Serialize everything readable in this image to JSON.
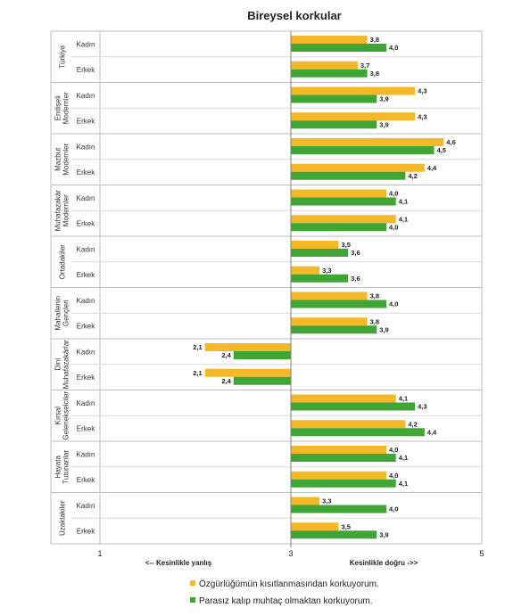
{
  "chart_data": {
    "type": "bar",
    "orientation": "horizontal",
    "title": "Bireysel korkular",
    "groups": [
      {
        "name": "Türkiye",
        "rows": [
          {
            "label": "Kadın",
            "values": [
              3.8,
              4.0
            ]
          },
          {
            "label": "Erkek",
            "values": [
              3.7,
              3.8
            ]
          }
        ]
      },
      {
        "name": "Endişeli Modernler",
        "rows": [
          {
            "label": "Kadın",
            "values": [
              4.3,
              3.9
            ]
          },
          {
            "label": "Erkek",
            "values": [
              4.3,
              3.9
            ]
          }
        ]
      },
      {
        "name": "Mazbut Modernler",
        "rows": [
          {
            "label": "Kadın",
            "values": [
              4.6,
              4.5
            ]
          },
          {
            "label": "Erkek",
            "values": [
              4.4,
              4.2
            ]
          }
        ]
      },
      {
        "name": "Muhafazakâr Modernler",
        "rows": [
          {
            "label": "Kadın",
            "values": [
              4.0,
              4.1
            ]
          },
          {
            "label": "Erkek",
            "values": [
              4.1,
              4.0
            ]
          }
        ]
      },
      {
        "name": "Ortadakiler",
        "rows": [
          {
            "label": "Kadın",
            "values": [
              3.5,
              3.6
            ]
          },
          {
            "label": "Erkek",
            "values": [
              3.3,
              3.6
            ]
          }
        ]
      },
      {
        "name": "Mahallenin Gençleri",
        "rows": [
          {
            "label": "Kadın",
            "values": [
              3.8,
              4.0
            ]
          },
          {
            "label": "Erkek",
            "values": [
              3.8,
              3.9
            ]
          }
        ]
      },
      {
        "name": "Dini Muhafazakârlar",
        "rows": [
          {
            "label": "Kadın",
            "values": [
              2.1,
              2.4
            ]
          },
          {
            "label": "Erkek",
            "values": [
              2.1,
              2.4
            ]
          }
        ]
      },
      {
        "name": "Kırsal Gelenekselciler",
        "rows": [
          {
            "label": "Kadın",
            "values": [
              4.1,
              4.3
            ]
          },
          {
            "label": "Erkek",
            "values": [
              4.2,
              4.4
            ]
          }
        ]
      },
      {
        "name": "Hayata Tutunanlar",
        "rows": [
          {
            "label": "Kadın",
            "values": [
              4.0,
              4.1
            ]
          },
          {
            "label": "Erkek",
            "values": [
              4.0,
              4.1
            ]
          }
        ]
      },
      {
        "name": "Uzaktakiler",
        "rows": [
          {
            "label": "Kadın",
            "values": [
              3.3,
              4.0
            ]
          },
          {
            "label": "Erkek",
            "values": [
              3.5,
              3.9
            ]
          }
        ]
      }
    ],
    "series": [
      {
        "name": "Özgürlüğümün kısıtlanmasından korkuyorum.",
        "color": "#F5B829"
      },
      {
        "name": "Parasız kalıp muhtaç olmaktan korkuyorum.",
        "color": "#3FA535"
      }
    ],
    "xlim": [
      1,
      5
    ],
    "baseline": 3,
    "xticks": [
      1,
      3,
      5
    ],
    "axis_captions": {
      "left": "<-- Kesinlikle yanlış",
      "right": "Kesinlikle doğru ->>"
    },
    "grid": true,
    "legend": "bottom"
  }
}
